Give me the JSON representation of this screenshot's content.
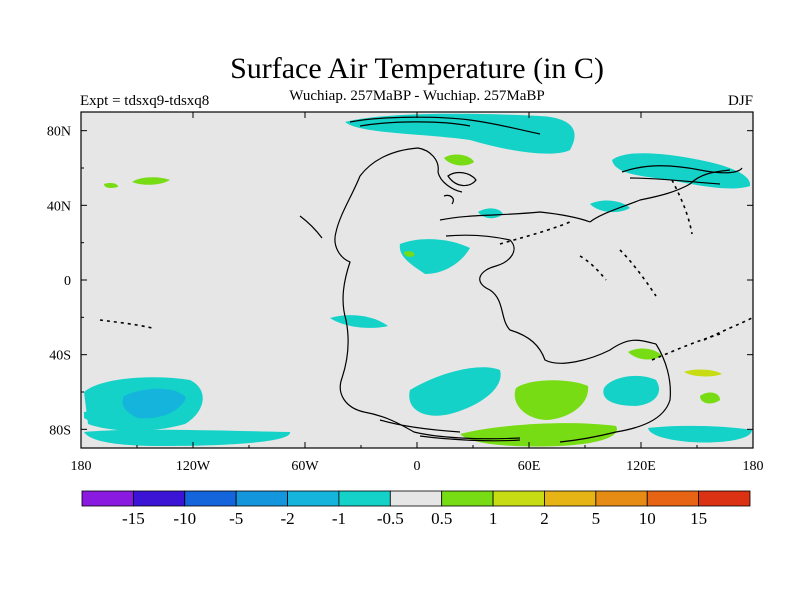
{
  "title": "Surface Air Temperature (in C)",
  "subtitle": "Wuchiap. 257MaBP - Wuchiap. 257MaBP",
  "experiment": "Expt = tdsxq9-tdsxq8",
  "season": "DJF",
  "map": {
    "projection": "cylindrical equidistant",
    "lon_range": [
      -180,
      180
    ],
    "lat_range": [
      -90,
      90
    ],
    "background_color": "#e6e6e6",
    "lon_ticks": [
      {
        "value": -180,
        "label": "180"
      },
      {
        "value": -120,
        "label": "120W"
      },
      {
        "value": -60,
        "label": "60W"
      },
      {
        "value": 0,
        "label": "0"
      },
      {
        "value": 60,
        "label": "60E"
      },
      {
        "value": 120,
        "label": "120E"
      },
      {
        "value": 180,
        "label": "180"
      }
    ],
    "lat_ticks": [
      {
        "value": 80,
        "label": "80N"
      },
      {
        "value": 40,
        "label": "40N"
      },
      {
        "value": 0,
        "label": "0"
      },
      {
        "value": -40,
        "label": "40S"
      },
      {
        "value": -80,
        "label": "80S"
      }
    ]
  },
  "colorbar": {
    "colors": [
      "#8b1ae0",
      "#3b14d6",
      "#1464dc",
      "#1496dc",
      "#14b4dc",
      "#14d2c8",
      "#e6e6e6",
      "#78dc14",
      "#c8dc14",
      "#e6b414",
      "#e68c14",
      "#e66414",
      "#dc3214"
    ],
    "labels": [
      "-15",
      "-10",
      "-5",
      "-2",
      "-1",
      "-0.5",
      "0.5",
      "1",
      "2",
      "5",
      "10",
      "15"
    ]
  },
  "fill_colors": {
    "cool_light": "#14d2c8",
    "cool_mid": "#14b4dc",
    "warm_light": "#78dc14",
    "warm_mid": "#c8dc14"
  }
}
